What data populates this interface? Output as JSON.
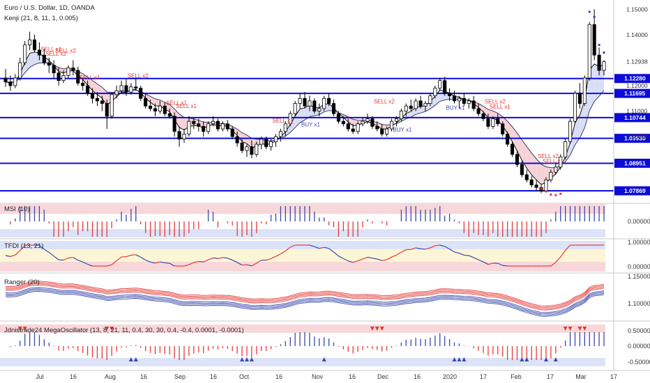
{
  "header": {
    "title": "Euro / U.S. Dollar, 1D, OANDA",
    "indicator": "Kenji (21, 8, 11, 1, 0.005)"
  },
  "chart_data": {
    "type": "candlestick",
    "symbol": "Euro / U.S. Dollar",
    "timeframe": "1D",
    "source": "OANDA",
    "x_ticks": [
      "Jul",
      "16",
      "Aug",
      "16",
      "Sep",
      "16",
      "Oct",
      "16",
      "Nov",
      "16",
      "Dec",
      "16",
      "2020",
      "17",
      "Feb",
      "17",
      "Mar",
      "17"
    ],
    "y_ticks": [
      1.15,
      1.14,
      1.12938,
      1.12,
      1.11,
      1.1
    ],
    "horizontal_levels": [
      1.1228,
      1.11695,
      1.10744,
      1.0993,
      1.08951,
      1.07869
    ],
    "price_range": [
      1.0765,
      1.152
    ],
    "candles": [
      {
        "o": 1.123,
        "h": 1.1265,
        "l": 1.1195,
        "c": 1.1215
      },
      {
        "o": 1.1215,
        "h": 1.124,
        "l": 1.118,
        "c": 1.12
      },
      {
        "o": 1.12,
        "h": 1.1245,
        "l": 1.119,
        "c": 1.123
      },
      {
        "o": 1.123,
        "h": 1.131,
        "l": 1.122,
        "c": 1.129
      },
      {
        "o": 1.129,
        "h": 1.1375,
        "l": 1.128,
        "c": 1.136
      },
      {
        "o": 1.136,
        "h": 1.1412,
        "l": 1.134,
        "c": 1.138
      },
      {
        "o": 1.138,
        "h": 1.14,
        "l": 1.133,
        "c": 1.134
      },
      {
        "o": 1.134,
        "h": 1.137,
        "l": 1.13,
        "c": 1.132
      },
      {
        "o": 1.132,
        "h": 1.1345,
        "l": 1.128,
        "c": 1.129
      },
      {
        "o": 1.129,
        "h": 1.131,
        "l": 1.125,
        "c": 1.128
      },
      {
        "o": 1.128,
        "h": 1.13,
        "l": 1.123,
        "c": 1.125
      },
      {
        "o": 1.125,
        "h": 1.127,
        "l": 1.12,
        "c": 1.122
      },
      {
        "o": 1.122,
        "h": 1.126,
        "l": 1.121,
        "c": 1.124
      },
      {
        "o": 1.124,
        "h": 1.128,
        "l": 1.123,
        "c": 1.127
      },
      {
        "o": 1.127,
        "h": 1.13,
        "l": 1.124,
        "c": 1.126
      },
      {
        "o": 1.126,
        "h": 1.1275,
        "l": 1.12,
        "c": 1.121
      },
      {
        "o": 1.121,
        "h": 1.123,
        "l": 1.118,
        "c": 1.12
      },
      {
        "o": 1.12,
        "h": 1.122,
        "l": 1.116,
        "c": 1.117
      },
      {
        "o": 1.117,
        "h": 1.119,
        "l": 1.113,
        "c": 1.115
      },
      {
        "o": 1.115,
        "h": 1.1175,
        "l": 1.112,
        "c": 1.114
      },
      {
        "o": 1.114,
        "h": 1.116,
        "l": 1.11,
        "c": 1.113
      },
      {
        "o": 1.113,
        "h": 1.1145,
        "l": 1.103,
        "c": 1.108
      },
      {
        "o": 1.108,
        "h": 1.1175,
        "l": 1.107,
        "c": 1.1165
      },
      {
        "o": 1.1165,
        "h": 1.12,
        "l": 1.115,
        "c": 1.118
      },
      {
        "o": 1.118,
        "h": 1.122,
        "l": 1.117,
        "c": 1.12
      },
      {
        "o": 1.12,
        "h": 1.1225,
        "l": 1.116,
        "c": 1.1175
      },
      {
        "o": 1.1175,
        "h": 1.121,
        "l": 1.1165,
        "c": 1.1195
      },
      {
        "o": 1.1195,
        "h": 1.123,
        "l": 1.118,
        "c": 1.119
      },
      {
        "o": 1.119,
        "h": 1.12,
        "l": 1.114,
        "c": 1.115
      },
      {
        "o": 1.115,
        "h": 1.117,
        "l": 1.111,
        "c": 1.112
      },
      {
        "o": 1.112,
        "h": 1.1145,
        "l": 1.11,
        "c": 1.111
      },
      {
        "o": 1.111,
        "h": 1.113,
        "l": 1.108,
        "c": 1.11
      },
      {
        "o": 1.11,
        "h": 1.114,
        "l": 1.109,
        "c": 1.112
      },
      {
        "o": 1.112,
        "h": 1.1135,
        "l": 1.108,
        "c": 1.109
      },
      {
        "o": 1.109,
        "h": 1.111,
        "l": 1.107,
        "c": 1.108
      },
      {
        "o": 1.108,
        "h": 1.1095,
        "l": 1.1,
        "c": 1.102
      },
      {
        "o": 1.102,
        "h": 1.104,
        "l": 1.096,
        "c": 1.099
      },
      {
        "o": 1.099,
        "h": 1.103,
        "l": 1.0975,
        "c": 1.101
      },
      {
        "o": 1.101,
        "h": 1.108,
        "l": 1.1,
        "c": 1.106
      },
      {
        "o": 1.106,
        "h": 1.1075,
        "l": 1.103,
        "c": 1.105
      },
      {
        "o": 1.105,
        "h": 1.107,
        "l": 1.102,
        "c": 1.104
      },
      {
        "o": 1.104,
        "h": 1.106,
        "l": 1.1,
        "c": 1.102
      },
      {
        "o": 1.102,
        "h": 1.106,
        "l": 1.101,
        "c": 1.105
      },
      {
        "o": 1.105,
        "h": 1.108,
        "l": 1.104,
        "c": 1.106
      },
      {
        "o": 1.106,
        "h": 1.107,
        "l": 1.102,
        "c": 1.103
      },
      {
        "o": 1.103,
        "h": 1.106,
        "l": 1.102,
        "c": 1.105
      },
      {
        "o": 1.105,
        "h": 1.1065,
        "l": 1.102,
        "c": 1.103
      },
      {
        "o": 1.103,
        "h": 1.104,
        "l": 1.099,
        "c": 1.1
      },
      {
        "o": 1.1,
        "h": 1.102,
        "l": 1.096,
        "c": 1.0975
      },
      {
        "o": 1.0975,
        "h": 1.099,
        "l": 1.0935,
        "c": 1.0945
      },
      {
        "o": 1.0945,
        "h": 1.097,
        "l": 1.092,
        "c": 1.096
      },
      {
        "o": 1.096,
        "h": 1.0985,
        "l": 1.0915,
        "c": 1.093
      },
      {
        "o": 1.093,
        "h": 1.098,
        "l": 1.092,
        "c": 1.097
      },
      {
        "o": 1.097,
        "h": 1.1,
        "l": 1.095,
        "c": 1.099
      },
      {
        "o": 1.099,
        "h": 1.1,
        "l": 1.095,
        "c": 1.096
      },
      {
        "o": 1.096,
        "h": 1.099,
        "l": 1.0945,
        "c": 1.098
      },
      {
        "o": 1.098,
        "h": 1.101,
        "l": 1.096,
        "c": 1.1
      },
      {
        "o": 1.1,
        "h": 1.103,
        "l": 1.098,
        "c": 1.102
      },
      {
        "o": 1.102,
        "h": 1.106,
        "l": 1.1,
        "c": 1.105
      },
      {
        "o": 1.105,
        "h": 1.11,
        "l": 1.104,
        "c": 1.109
      },
      {
        "o": 1.109,
        "h": 1.114,
        "l": 1.108,
        "c": 1.113
      },
      {
        "o": 1.113,
        "h": 1.117,
        "l": 1.111,
        "c": 1.115
      },
      {
        "o": 1.115,
        "h": 1.1175,
        "l": 1.111,
        "c": 1.112
      },
      {
        "o": 1.112,
        "h": 1.116,
        "l": 1.11,
        "c": 1.114
      },
      {
        "o": 1.114,
        "h": 1.115,
        "l": 1.109,
        "c": 1.11
      },
      {
        "o": 1.11,
        "h": 1.113,
        "l": 1.108,
        "c": 1.111
      },
      {
        "o": 1.111,
        "h": 1.116,
        "l": 1.11,
        "c": 1.115
      },
      {
        "o": 1.115,
        "h": 1.117,
        "l": 1.112,
        "c": 1.113
      },
      {
        "o": 1.113,
        "h": 1.1145,
        "l": 1.108,
        "c": 1.109
      },
      {
        "o": 1.109,
        "h": 1.11,
        "l": 1.105,
        "c": 1.106
      },
      {
        "o": 1.106,
        "h": 1.108,
        "l": 1.104,
        "c": 1.105
      },
      {
        "o": 1.105,
        "h": 1.107,
        "l": 1.102,
        "c": 1.103
      },
      {
        "o": 1.103,
        "h": 1.105,
        "l": 1.101,
        "c": 1.102
      },
      {
        "o": 1.102,
        "h": 1.106,
        "l": 1.101,
        "c": 1.105
      },
      {
        "o": 1.105,
        "h": 1.1075,
        "l": 1.104,
        "c": 1.106
      },
      {
        "o": 1.106,
        "h": 1.109,
        "l": 1.105,
        "c": 1.107
      },
      {
        "o": 1.107,
        "h": 1.108,
        "l": 1.103,
        "c": 1.104
      },
      {
        "o": 1.104,
        "h": 1.106,
        "l": 1.102,
        "c": 1.103
      },
      {
        "o": 1.103,
        "h": 1.105,
        "l": 1.1,
        "c": 1.101
      },
      {
        "o": 1.101,
        "h": 1.104,
        "l": 1.1,
        "c": 1.103
      },
      {
        "o": 1.103,
        "h": 1.107,
        "l": 1.102,
        "c": 1.106
      },
      {
        "o": 1.106,
        "h": 1.108,
        "l": 1.104,
        "c": 1.107
      },
      {
        "o": 1.107,
        "h": 1.111,
        "l": 1.106,
        "c": 1.11
      },
      {
        "o": 1.11,
        "h": 1.113,
        "l": 1.108,
        "c": 1.112
      },
      {
        "o": 1.112,
        "h": 1.1145,
        "l": 1.11,
        "c": 1.111
      },
      {
        "o": 1.111,
        "h": 1.115,
        "l": 1.11,
        "c": 1.114
      },
      {
        "o": 1.114,
        "h": 1.116,
        "l": 1.111,
        "c": 1.112
      },
      {
        "o": 1.112,
        "h": 1.114,
        "l": 1.11,
        "c": 1.113
      },
      {
        "o": 1.113,
        "h": 1.117,
        "l": 1.112,
        "c": 1.116
      },
      {
        "o": 1.116,
        "h": 1.12,
        "l": 1.115,
        "c": 1.119
      },
      {
        "o": 1.119,
        "h": 1.123,
        "l": 1.118,
        "c": 1.122
      },
      {
        "o": 1.122,
        "h": 1.1235,
        "l": 1.116,
        "c": 1.117
      },
      {
        "o": 1.117,
        "h": 1.119,
        "l": 1.114,
        "c": 1.116
      },
      {
        "o": 1.116,
        "h": 1.118,
        "l": 1.113,
        "c": 1.114
      },
      {
        "o": 1.114,
        "h": 1.116,
        "l": 1.111,
        "c": 1.115
      },
      {
        "o": 1.115,
        "h": 1.117,
        "l": 1.112,
        "c": 1.113
      },
      {
        "o": 1.113,
        "h": 1.115,
        "l": 1.111,
        "c": 1.114
      },
      {
        "o": 1.114,
        "h": 1.116,
        "l": 1.11,
        "c": 1.111
      },
      {
        "o": 1.111,
        "h": 1.113,
        "l": 1.108,
        "c": 1.109
      },
      {
        "o": 1.109,
        "h": 1.11,
        "l": 1.106,
        "c": 1.107
      },
      {
        "o": 1.107,
        "h": 1.109,
        "l": 1.103,
        "c": 1.104
      },
      {
        "o": 1.104,
        "h": 1.108,
        "l": 1.103,
        "c": 1.107
      },
      {
        "o": 1.107,
        "h": 1.109,
        "l": 1.104,
        "c": 1.105
      },
      {
        "o": 1.105,
        "h": 1.106,
        "l": 1.1,
        "c": 1.101
      },
      {
        "o": 1.101,
        "h": 1.102,
        "l": 1.096,
        "c": 1.097
      },
      {
        "o": 1.097,
        "h": 1.098,
        "l": 1.092,
        "c": 1.093
      },
      {
        "o": 1.093,
        "h": 1.0945,
        "l": 1.088,
        "c": 1.089
      },
      {
        "o": 1.089,
        "h": 1.0905,
        "l": 1.084,
        "c": 1.085
      },
      {
        "o": 1.085,
        "h": 1.087,
        "l": 1.082,
        "c": 1.083
      },
      {
        "o": 1.083,
        "h": 1.0845,
        "l": 1.08,
        "c": 1.081
      },
      {
        "o": 1.081,
        "h": 1.083,
        "l": 1.0785,
        "c": 1.08
      },
      {
        "o": 1.08,
        "h": 1.081,
        "l": 1.0778,
        "c": 1.0785
      },
      {
        "o": 1.0785,
        "h": 1.084,
        "l": 1.078,
        "c": 1.083
      },
      {
        "o": 1.083,
        "h": 1.087,
        "l": 1.082,
        "c": 1.086
      },
      {
        "o": 1.086,
        "h": 1.09,
        "l": 1.085,
        "c": 1.088
      },
      {
        "o": 1.088,
        "h": 1.093,
        "l": 1.087,
        "c": 1.092
      },
      {
        "o": 1.092,
        "h": 1.099,
        "l": 1.091,
        "c": 1.098
      },
      {
        "o": 1.098,
        "h": 1.107,
        "l": 1.097,
        "c": 1.106
      },
      {
        "o": 1.106,
        "h": 1.118,
        "l": 1.105,
        "c": 1.117
      },
      {
        "o": 1.117,
        "h": 1.121,
        "l": 1.111,
        "c": 1.113
      },
      {
        "o": 1.113,
        "h": 1.124,
        "l": 1.112,
        "c": 1.123
      },
      {
        "o": 1.123,
        "h": 1.145,
        "l": 1.122,
        "c": 1.144
      },
      {
        "o": 1.144,
        "h": 1.15,
        "l": 1.13,
        "c": 1.132
      },
      {
        "o": 1.132,
        "h": 1.135,
        "l": 1.124,
        "c": 1.126
      },
      {
        "o": 1.126,
        "h": 1.13,
        "l": 1.124,
        "c": 1.1294
      }
    ],
    "signals": [
      {
        "i": 9,
        "label": "SELL x1",
        "type": "sell",
        "y": 1.1335
      },
      {
        "i": 10,
        "label": "SELL x2",
        "type": "sell",
        "y": 1.1318
      },
      {
        "i": 12,
        "label": "SELL x2",
        "type": "sell",
        "y": 1.133
      },
      {
        "i": 17,
        "label": "SELL x1",
        "type": "sell",
        "y": 1.1225
      },
      {
        "i": 27,
        "label": "SELL x2",
        "type": "sell",
        "y": 1.1232
      },
      {
        "i": 35,
        "label": "SELL x1",
        "type": "sell",
        "y": 1.1125
      },
      {
        "i": 37,
        "label": "SELL x1",
        "type": "sell",
        "y": 1.1112
      },
      {
        "i": 57,
        "label": "SELL x1",
        "type": "sell",
        "y": 1.1055
      },
      {
        "i": 63,
        "label": "BUY x1",
        "type": "buy",
        "y": 1.104
      },
      {
        "i": 78,
        "label": "SELL x2",
        "type": "sell",
        "y": 1.113
      },
      {
        "i": 82,
        "label": "BUY x1",
        "type": "buy",
        "y": 1.102
      },
      {
        "i": 93,
        "label": "BUY x1",
        "type": "buy",
        "y": 1.1105
      },
      {
        "i": 101,
        "label": "SELL x2",
        "type": "sell",
        "y": 1.113
      },
      {
        "i": 102,
        "label": "SELL x1",
        "type": "sell",
        "y": 1.111
      },
      {
        "i": 112,
        "label": "SELL x2",
        "type": "sell",
        "y": 1.0915
      },
      {
        "i": 113,
        "label": "SELL x1",
        "type": "sell",
        "y": 1.0895
      }
    ]
  },
  "panes": {
    "msi": {
      "title": "MSI (10)",
      "ticks": [
        "0.00000"
      ]
    },
    "tfdi": {
      "title": "TFDI (13, 21)",
      "ticks": [
        "1.00000",
        "0.00000"
      ]
    },
    "ranger": {
      "title": "Ranger (20)",
      "ticks": [
        "1.15000",
        "1.10000"
      ]
    },
    "mega": {
      "title": "Jdnistrade24 MegaOscillator (13, 8, 21, 11, 0.4, 30, 30, 0.4, -0.4, 0.0001, -0.0001)",
      "ticks": [
        "0.50000",
        "0.00000",
        "-0.50000"
      ]
    }
  },
  "colors": {
    "bull": "#ffffff",
    "bear": "#000000",
    "level_line": "#0c0cd8",
    "level_label_bg": "#0c0cd8",
    "sell": "#e53935",
    "buy": "#3949ab",
    "pink_band": "#f8d7da",
    "blue_band": "#dde3f7",
    "yellow_band": "#fdf6d6"
  }
}
